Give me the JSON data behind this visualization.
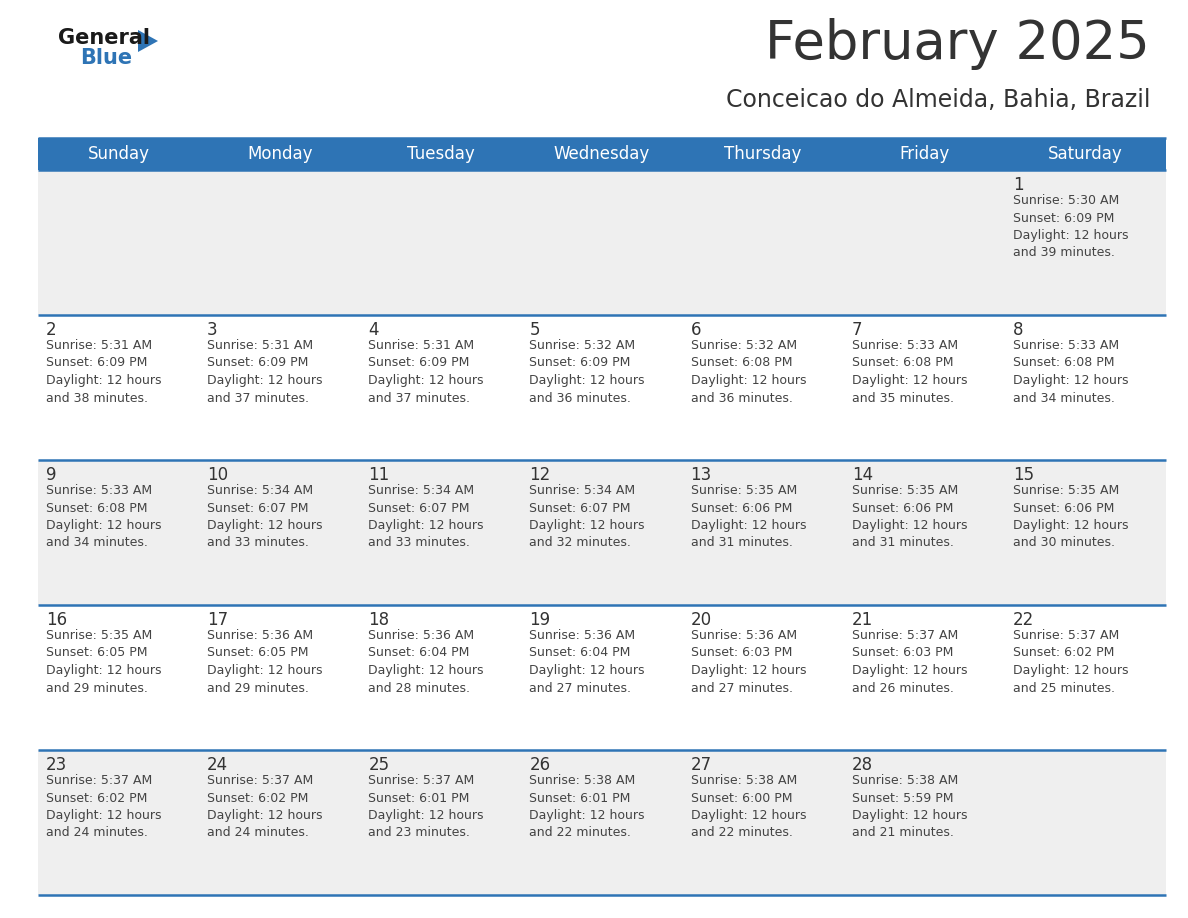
{
  "title": "February 2025",
  "subtitle": "Conceicao do Almeida, Bahia, Brazil",
  "header_color": "#2e74b5",
  "header_text_color": "#ffffff",
  "cell_bg_even": "#efefef",
  "cell_bg_odd": "#ffffff",
  "day_name_color": "#333333",
  "info_text_color": "#444444",
  "border_color": "#2e74b5",
  "days_of_week": [
    "Sunday",
    "Monday",
    "Tuesday",
    "Wednesday",
    "Thursday",
    "Friday",
    "Saturday"
  ],
  "weeks": [
    [
      {
        "day": null,
        "info": null
      },
      {
        "day": null,
        "info": null
      },
      {
        "day": null,
        "info": null
      },
      {
        "day": null,
        "info": null
      },
      {
        "day": null,
        "info": null
      },
      {
        "day": null,
        "info": null
      },
      {
        "day": "1",
        "info": "Sunrise: 5:30 AM\nSunset: 6:09 PM\nDaylight: 12 hours\nand 39 minutes."
      }
    ],
    [
      {
        "day": "2",
        "info": "Sunrise: 5:31 AM\nSunset: 6:09 PM\nDaylight: 12 hours\nand 38 minutes."
      },
      {
        "day": "3",
        "info": "Sunrise: 5:31 AM\nSunset: 6:09 PM\nDaylight: 12 hours\nand 37 minutes."
      },
      {
        "day": "4",
        "info": "Sunrise: 5:31 AM\nSunset: 6:09 PM\nDaylight: 12 hours\nand 37 minutes."
      },
      {
        "day": "5",
        "info": "Sunrise: 5:32 AM\nSunset: 6:09 PM\nDaylight: 12 hours\nand 36 minutes."
      },
      {
        "day": "6",
        "info": "Sunrise: 5:32 AM\nSunset: 6:08 PM\nDaylight: 12 hours\nand 36 minutes."
      },
      {
        "day": "7",
        "info": "Sunrise: 5:33 AM\nSunset: 6:08 PM\nDaylight: 12 hours\nand 35 minutes."
      },
      {
        "day": "8",
        "info": "Sunrise: 5:33 AM\nSunset: 6:08 PM\nDaylight: 12 hours\nand 34 minutes."
      }
    ],
    [
      {
        "day": "9",
        "info": "Sunrise: 5:33 AM\nSunset: 6:08 PM\nDaylight: 12 hours\nand 34 minutes."
      },
      {
        "day": "10",
        "info": "Sunrise: 5:34 AM\nSunset: 6:07 PM\nDaylight: 12 hours\nand 33 minutes."
      },
      {
        "day": "11",
        "info": "Sunrise: 5:34 AM\nSunset: 6:07 PM\nDaylight: 12 hours\nand 33 minutes."
      },
      {
        "day": "12",
        "info": "Sunrise: 5:34 AM\nSunset: 6:07 PM\nDaylight: 12 hours\nand 32 minutes."
      },
      {
        "day": "13",
        "info": "Sunrise: 5:35 AM\nSunset: 6:06 PM\nDaylight: 12 hours\nand 31 minutes."
      },
      {
        "day": "14",
        "info": "Sunrise: 5:35 AM\nSunset: 6:06 PM\nDaylight: 12 hours\nand 31 minutes."
      },
      {
        "day": "15",
        "info": "Sunrise: 5:35 AM\nSunset: 6:06 PM\nDaylight: 12 hours\nand 30 minutes."
      }
    ],
    [
      {
        "day": "16",
        "info": "Sunrise: 5:35 AM\nSunset: 6:05 PM\nDaylight: 12 hours\nand 29 minutes."
      },
      {
        "day": "17",
        "info": "Sunrise: 5:36 AM\nSunset: 6:05 PM\nDaylight: 12 hours\nand 29 minutes."
      },
      {
        "day": "18",
        "info": "Sunrise: 5:36 AM\nSunset: 6:04 PM\nDaylight: 12 hours\nand 28 minutes."
      },
      {
        "day": "19",
        "info": "Sunrise: 5:36 AM\nSunset: 6:04 PM\nDaylight: 12 hours\nand 27 minutes."
      },
      {
        "day": "20",
        "info": "Sunrise: 5:36 AM\nSunset: 6:03 PM\nDaylight: 12 hours\nand 27 minutes."
      },
      {
        "day": "21",
        "info": "Sunrise: 5:37 AM\nSunset: 6:03 PM\nDaylight: 12 hours\nand 26 minutes."
      },
      {
        "day": "22",
        "info": "Sunrise: 5:37 AM\nSunset: 6:02 PM\nDaylight: 12 hours\nand 25 minutes."
      }
    ],
    [
      {
        "day": "23",
        "info": "Sunrise: 5:37 AM\nSunset: 6:02 PM\nDaylight: 12 hours\nand 24 minutes."
      },
      {
        "day": "24",
        "info": "Sunrise: 5:37 AM\nSunset: 6:02 PM\nDaylight: 12 hours\nand 24 minutes."
      },
      {
        "day": "25",
        "info": "Sunrise: 5:37 AM\nSunset: 6:01 PM\nDaylight: 12 hours\nand 23 minutes."
      },
      {
        "day": "26",
        "info": "Sunrise: 5:38 AM\nSunset: 6:01 PM\nDaylight: 12 hours\nand 22 minutes."
      },
      {
        "day": "27",
        "info": "Sunrise: 5:38 AM\nSunset: 6:00 PM\nDaylight: 12 hours\nand 22 minutes."
      },
      {
        "day": "28",
        "info": "Sunrise: 5:38 AM\nSunset: 5:59 PM\nDaylight: 12 hours\nand 21 minutes."
      },
      {
        "day": null,
        "info": null
      }
    ]
  ],
  "logo_color_general": "#1a1a1a",
  "logo_color_blue": "#2e74b5",
  "title_fontsize": 38,
  "subtitle_fontsize": 17,
  "header_fontsize": 12,
  "day_num_fontsize": 12,
  "info_fontsize": 9
}
